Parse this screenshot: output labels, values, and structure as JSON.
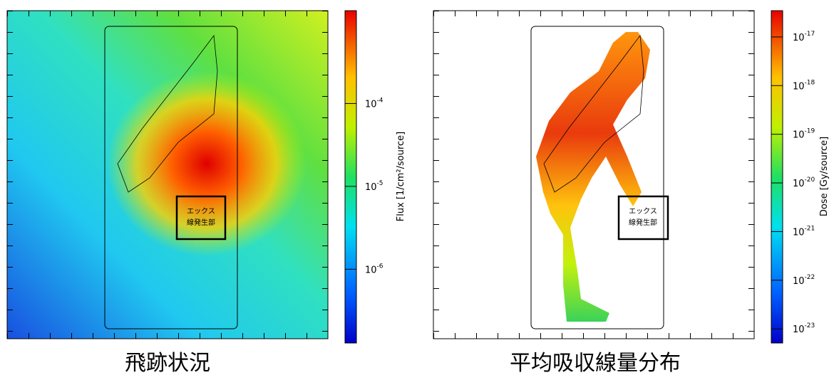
{
  "panels": [
    {
      "caption": "飛跡状況",
      "source_label": [
        "エックス",
        "線発生部"
      ],
      "colorbar": {
        "label": "Flux [1/cm²/source]",
        "log10_lim": [
          -6.89,
          -2.88
        ],
        "ticks": [
          {
            "base": "10",
            "exponent": -4
          },
          {
            "base": "10",
            "exponent": -5
          },
          {
            "base": "10",
            "exponent": -6
          }
        ]
      }
    },
    {
      "caption": "平均吸収線量分布",
      "source_label": [
        "エックス",
        "線発生部"
      ],
      "colorbar": {
        "label": "Dose [Gy/source]",
        "log10_lim": [
          -23.29,
          -16.46
        ],
        "ticks": [
          {
            "base": "10",
            "exponent": -17
          },
          {
            "base": "10",
            "exponent": -18
          },
          {
            "base": "10",
            "exponent": -19
          },
          {
            "base": "10",
            "exponent": -20
          },
          {
            "base": "10",
            "exponent": -21
          },
          {
            "base": "10",
            "exponent": -22
          },
          {
            "base": "10",
            "exponent": -23
          }
        ]
      }
    }
  ]
}
